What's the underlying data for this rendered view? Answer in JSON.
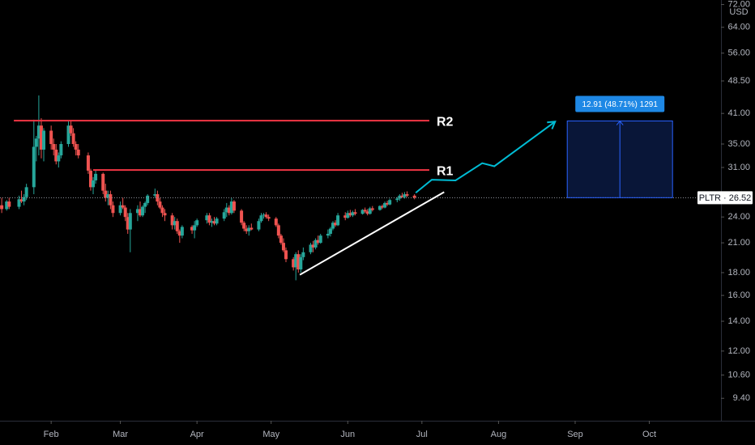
{
  "chart_data": {
    "type": "candlestick",
    "currency": "USD",
    "log_scale": true,
    "grid": false,
    "xlim": [
      11.3,
      303
    ],
    "ylim": [
      8.37,
      73.7
    ],
    "xticks": [
      {
        "value": 32,
        "label": "Feb"
      },
      {
        "value": 60,
        "label": "Mar"
      },
      {
        "value": 91,
        "label": "Apr"
      },
      {
        "value": 121,
        "label": "May"
      },
      {
        "value": 152,
        "label": "Jun"
      },
      {
        "value": 182,
        "label": "Jul"
      },
      {
        "value": 213,
        "label": "Aug"
      },
      {
        "value": 244,
        "label": "Sep"
      },
      {
        "value": 274,
        "label": "Oct"
      }
    ],
    "yticks": [
      {
        "value": 72,
        "label": "72.00"
      },
      {
        "value": 64,
        "label": "64.00"
      },
      {
        "value": 56,
        "label": "56.00"
      },
      {
        "value": 48.5,
        "label": "48.50"
      },
      {
        "value": 41,
        "label": "41.00"
      },
      {
        "value": 35,
        "label": "35.00"
      },
      {
        "value": 31,
        "label": "31.00"
      },
      {
        "value": 24,
        "label": "24.00"
      },
      {
        "value": 21,
        "label": "21.00"
      },
      {
        "value": 18,
        "label": "18.00"
      },
      {
        "value": 16,
        "label": "16.00"
      },
      {
        "value": 14,
        "label": "14.00"
      },
      {
        "value": 12,
        "label": "12.00"
      },
      {
        "value": 10.6,
        "label": "10.60"
      },
      {
        "value": 9.4,
        "label": "9.40"
      }
    ],
    "candles": {
      "up_color": "#26a69a",
      "down_color": "#ef5350",
      "x": [
        12,
        14,
        15,
        19,
        20,
        21,
        22,
        25,
        26,
        27,
        28,
        29,
        32,
        33,
        34,
        35,
        36,
        39,
        40,
        41,
        42,
        43,
        47,
        48,
        49,
        50,
        53,
        54,
        55,
        56,
        57,
        60,
        61,
        62,
        63,
        64,
        67,
        68,
        69,
        70,
        71,
        74,
        75,
        76,
        77,
        78,
        81,
        82,
        83,
        84,
        85,
        89,
        90,
        91,
        95,
        96,
        97,
        98,
        99,
        102,
        103,
        104,
        105,
        106,
        109,
        110,
        111,
        112,
        113,
        116,
        117,
        118,
        119,
        120,
        123,
        124,
        125,
        126,
        127,
        130,
        131,
        132,
        133,
        134,
        137,
        138,
        139,
        140,
        141,
        144,
        145,
        146,
        147,
        148,
        151,
        152,
        153,
        154,
        155,
        158,
        159,
        160,
        161,
        162,
        165,
        166,
        167,
        168,
        169,
        172,
        173,
        174,
        175,
        176,
        179
      ],
      "open": [
        25.5,
        25.0,
        26.0,
        25.3,
        26.3,
        26.0,
        26.6,
        28.0,
        34.5,
        36.0,
        38.5,
        34.0,
        37.5,
        35.0,
        34.0,
        32.0,
        33.0,
        35.0,
        38.5,
        37.0,
        35.0,
        34.0,
        33.0,
        30.5,
        28.0,
        29.0,
        30.0,
        27.5,
        26.5,
        27.0,
        25.5,
        24.5,
        25.5,
        25.2,
        24.0,
        22.5,
        24.5,
        25.0,
        24.2,
        25.3,
        25.8,
        26.8,
        27.0,
        26.0,
        25.2,
        24.5,
        24.2,
        23.0,
        23.5,
        22.3,
        21.8,
        22.8,
        22.4,
        23.0,
        23.6,
        24.2,
        23.3,
        23.5,
        23.2,
        23.8,
        24.6,
        25.2,
        24.5,
        26.0,
        24.8,
        23.3,
        22.6,
        22.3,
        22.7,
        22.5,
        23.5,
        24.2,
        24.3,
        24.0,
        23.8,
        23.0,
        21.8,
        21.0,
        20.2,
        19.3,
        18.5,
        19.8,
        18.3,
        19.5,
        20.0,
        20.8,
        20.5,
        21.3,
        21.0,
        21.8,
        22.0,
        22.6,
        23.3,
        23.0,
        24.2,
        23.9,
        24.5,
        24.2,
        24.6,
        24.4,
        24.9,
        24.7,
        24.4,
        25.1,
        24.9,
        25.4,
        25.2,
        25.8,
        25.6,
        26.2,
        26.4,
        26.8,
        26.6,
        27.0,
        26.8
      ],
      "high": [
        26.5,
        26.2,
        26.5,
        26.8,
        27.5,
        27.0,
        28.5,
        39.7,
        36.5,
        45.0,
        40.0,
        38.0,
        38.5,
        36.0,
        35.0,
        33.5,
        35.5,
        39.5,
        39.5,
        38.0,
        35.5,
        35.0,
        33.5,
        30.8,
        29.5,
        30.5,
        30.2,
        28.5,
        27.5,
        27.5,
        26.0,
        26.0,
        26.5,
        25.5,
        24.5,
        25.0,
        25.5,
        26.0,
        25.5,
        26.0,
        27.0,
        27.8,
        27.5,
        26.5,
        25.5,
        25.0,
        24.5,
        24.0,
        23.8,
        22.5,
        23.0,
        23.0,
        23.5,
        23.8,
        24.5,
        24.5,
        23.8,
        24.0,
        24.0,
        25.0,
        25.8,
        25.5,
        26.5,
        26.2,
        25.0,
        23.5,
        23.0,
        23.0,
        23.2,
        23.8,
        24.5,
        24.5,
        24.6,
        24.3,
        24.0,
        23.2,
        22.0,
        21.5,
        20.5,
        19.5,
        20.0,
        20.2,
        19.8,
        20.5,
        21.0,
        21.2,
        21.5,
        21.8,
        22.0,
        22.5,
        22.8,
        23.5,
        23.6,
        24.5,
        24.6,
        24.8,
        24.9,
        24.8,
        25.0,
        25.0,
        25.2,
        25.0,
        25.3,
        25.4,
        25.5,
        25.6,
        26.0,
        26.1,
        26.4,
        26.6,
        27.0,
        27.2,
        27.3,
        27.4,
        27.0
      ],
      "low": [
        24.5,
        24.8,
        25.0,
        25.0,
        25.8,
        25.5,
        26.2,
        27.0,
        32.0,
        33.0,
        32.5,
        32.0,
        34.0,
        33.0,
        31.5,
        31.0,
        32.5,
        34.5,
        36.5,
        34.5,
        33.0,
        32.5,
        30.0,
        27.5,
        27.0,
        28.5,
        27.0,
        26.0,
        25.5,
        25.0,
        24.0,
        24.2,
        25.0,
        23.5,
        22.0,
        20.0,
        23.5,
        24.0,
        24.0,
        24.5,
        25.5,
        26.5,
        25.5,
        25.0,
        24.0,
        23.5,
        22.5,
        22.5,
        22.0,
        21.0,
        21.5,
        22.0,
        21.5,
        22.8,
        23.2,
        23.0,
        22.8,
        23.0,
        23.0,
        23.5,
        24.0,
        24.2,
        24.3,
        24.5,
        23.0,
        22.3,
        22.0,
        21.8,
        22.4,
        22.3,
        23.3,
        23.8,
        23.8,
        23.5,
        22.8,
        21.5,
        20.8,
        20.0,
        19.0,
        18.2,
        17.3,
        18.0,
        18.0,
        19.2,
        19.8,
        20.0,
        20.3,
        20.8,
        20.9,
        21.5,
        21.7,
        22.4,
        22.8,
        22.9,
        23.6,
        23.8,
        24.0,
        24.0,
        24.2,
        24.3,
        24.5,
        24.2,
        24.3,
        24.7,
        24.8,
        25.0,
        25.1,
        25.4,
        25.5,
        25.9,
        26.1,
        26.5,
        26.4,
        26.6,
        26.3
      ],
      "close": [
        25.0,
        26.0,
        25.3,
        26.3,
        26.0,
        26.6,
        28.0,
        34.5,
        36.0,
        38.5,
        34.0,
        37.5,
        35.0,
        34.0,
        32.0,
        33.0,
        35.0,
        38.5,
        37.0,
        35.0,
        34.0,
        33.0,
        30.5,
        28.0,
        29.0,
        30.0,
        27.5,
        26.5,
        27.0,
        25.5,
        24.5,
        25.5,
        25.2,
        24.0,
        22.5,
        24.5,
        25.0,
        24.2,
        25.3,
        25.8,
        26.8,
        27.0,
        26.0,
        25.2,
        24.5,
        24.2,
        23.0,
        23.5,
        22.3,
        21.8,
        22.8,
        22.4,
        23.0,
        23.6,
        24.2,
        23.3,
        23.5,
        23.2,
        23.8,
        24.6,
        25.2,
        24.5,
        26.0,
        24.8,
        23.3,
        22.6,
        22.3,
        22.7,
        22.5,
        23.5,
        24.2,
        24.3,
        24.0,
        23.8,
        23.0,
        21.8,
        21.0,
        20.2,
        19.3,
        18.5,
        19.8,
        18.3,
        19.5,
        20.0,
        20.8,
        20.5,
        21.3,
        21.0,
        21.8,
        22.0,
        22.6,
        23.3,
        23.0,
        24.2,
        23.9,
        24.5,
        24.2,
        24.6,
        24.4,
        24.9,
        24.7,
        24.4,
        25.1,
        24.9,
        25.4,
        25.2,
        25.8,
        25.6,
        26.2,
        26.4,
        26.8,
        26.6,
        27.0,
        26.8,
        26.52
      ]
    },
    "last_price": 26.52,
    "last_label": "PLTR · 26.52",
    "levels": [
      {
        "label": "R2",
        "value": 39.5,
        "x": [
          16.9,
          185
        ],
        "color": "#f23645"
      },
      {
        "label": "R1",
        "value": 30.6,
        "x": [
          49,
          185
        ],
        "color": "#f23645"
      }
    ],
    "trendline": {
      "x": [
        132.6,
        191
      ],
      "y": [
        17.8,
        27.3
      ],
      "color": "#ffffff"
    },
    "projection": {
      "x": [
        179.5,
        186,
        195.6,
        206.4,
        211.3,
        235.9
      ],
      "y": [
        27.2,
        29.1,
        29.0,
        31.7,
        31.2,
        39.3
      ],
      "color": "#00bcd4"
    },
    "measure": {
      "x": [
        240.8,
        283.4
      ],
      "y": [
        26.52,
        39.43
      ],
      "label": "12.91 (48.71%) 1291"
    }
  }
}
